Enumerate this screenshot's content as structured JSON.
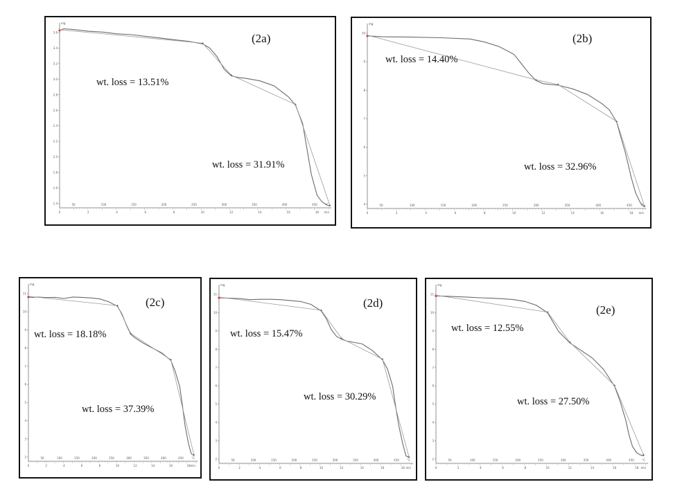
{
  "chart_data": [
    {
      "type": "line",
      "panel_label": "(2a)",
      "annotations": [
        "wt. loss = 13.51%",
        "wt. loss = 31.91%"
      ],
      "ylim": [
        1.4,
        3.6
      ],
      "xlim": [
        0,
        19
      ],
      "yunit": "mg",
      "xunit": "min",
      "x2unit": "°C",
      "yticks": [
        "3.6",
        "3.4",
        "3.2",
        "3.0",
        "2.8",
        "2.6",
        "2.4",
        "2.2",
        "2.0",
        "1.8",
        "1.6",
        "1.4"
      ],
      "xticks": [
        "0",
        "2",
        "4",
        "6",
        "8",
        "10",
        "12",
        "14",
        "16",
        "18"
      ],
      "x2ticks": [
        "50",
        "100",
        "150",
        "200",
        "250",
        "300",
        "350",
        "400",
        "450"
      ],
      "x": [
        0,
        0.3,
        1,
        2,
        3,
        4,
        5,
        6,
        7,
        8,
        9,
        10,
        10.5,
        11,
        11.5,
        12,
        12.5,
        13,
        14,
        15,
        16,
        16.5,
        17,
        17.3,
        17.6,
        18,
        18.3,
        18.6,
        18.9
      ],
      "y": [
        3.51,
        3.53,
        3.52,
        3.5,
        3.49,
        3.47,
        3.46,
        3.44,
        3.42,
        3.4,
        3.38,
        3.35,
        3.3,
        3.2,
        3.05,
        2.97,
        2.95,
        2.94,
        2.91,
        2.85,
        2.72,
        2.62,
        2.4,
        2.1,
        1.8,
        1.55,
        1.48,
        1.44,
        1.42
      ]
    },
    {
      "type": "line",
      "panel_label": "(2b)",
      "annotations": [
        "wt. loss = 14.40%",
        "wt. loss = 32.96%"
      ],
      "ylim": [
        4,
        10
      ],
      "xlim": [
        0,
        19
      ],
      "yunit": "mg",
      "xunit": "min",
      "x2unit": "°C",
      "yticks": [
        "10",
        "9",
        "8",
        "7",
        "6",
        "5",
        "4"
      ],
      "xticks": [
        "0",
        "2",
        "4",
        "6",
        "8",
        "10",
        "12",
        "14",
        "16",
        "18"
      ],
      "x2ticks": [
        "50",
        "100",
        "150",
        "200",
        "250",
        "300",
        "350",
        "400",
        "450"
      ],
      "x": [
        0,
        1,
        3,
        5,
        7,
        8,
        9,
        10,
        10.5,
        11,
        11.5,
        12,
        12.5,
        13,
        14,
        15,
        16,
        16.5,
        17,
        17.3,
        17.6,
        18,
        18.3,
        18.6,
        18.9
      ],
      "y": [
        9.6,
        9.57,
        9.56,
        9.54,
        9.5,
        9.4,
        9.25,
        9.0,
        8.7,
        8.4,
        8.15,
        8.05,
        8.02,
        8.0,
        7.88,
        7.7,
        7.4,
        7.2,
        6.8,
        6.3,
        5.8,
        5.0,
        4.5,
        4.2,
        4.05
      ]
    },
    {
      "type": "line",
      "panel_label": "(2c)",
      "annotations": [
        "wt. loss = 18.18%",
        "wt. loss = 37.39%"
      ],
      "ylim": [
        1.5,
        11
      ],
      "xlim": [
        0,
        19
      ],
      "yunit": "mg",
      "xunit": "min",
      "x2unit": "°C",
      "yticks": [
        "11",
        "10",
        "9",
        "8",
        "7",
        "6",
        "5",
        "4",
        "3",
        "2"
      ],
      "xticks": [
        "0",
        "2",
        "4",
        "6",
        "8",
        "10",
        "12",
        "14",
        "16",
        "18"
      ],
      "x2ticks": [
        "50",
        "100",
        "150",
        "200",
        "250",
        "300",
        "350",
        "400",
        "450"
      ],
      "x": [
        0,
        0.5,
        1,
        2,
        3,
        4,
        5,
        6,
        7,
        8,
        9,
        10,
        10.5,
        11,
        11.5,
        12,
        12.5,
        13,
        14,
        15,
        16,
        16.5,
        17,
        17.3,
        17.6,
        18,
        18.3,
        18.6
      ],
      "y": [
        10.3,
        10.28,
        10.3,
        10.27,
        10.28,
        10.22,
        10.3,
        10.28,
        10.25,
        10.2,
        10.05,
        9.8,
        9.4,
        8.8,
        8.3,
        8.1,
        7.95,
        7.8,
        7.55,
        7.3,
        6.9,
        6.3,
        5.5,
        4.5,
        3.4,
        2.4,
        1.9,
        1.8
      ]
    },
    {
      "type": "line",
      "panel_label": "(2d)",
      "annotations": [
        "wt. loss = 15.47%",
        "wt. loss = 30.29%"
      ],
      "ylim": [
        1.5,
        11
      ],
      "xlim": [
        0,
        19
      ],
      "yunit": "mg",
      "xunit": "min",
      "x2unit": "°C",
      "yticks": [
        "11",
        "10",
        "9",
        "8",
        "7",
        "6",
        "5",
        "4",
        "3",
        "2"
      ],
      "xticks": [
        "0",
        "2",
        "4",
        "6",
        "8",
        "10",
        "12",
        "14",
        "16",
        "18"
      ],
      "x2ticks": [
        "50",
        "100",
        "150",
        "200",
        "250",
        "300",
        "350",
        "400",
        "450"
      ],
      "x": [
        0,
        1,
        2,
        3,
        4,
        5,
        6,
        7,
        8,
        9,
        10,
        10.5,
        11,
        11.5,
        12,
        12.5,
        13,
        14,
        15,
        16,
        16.5,
        17,
        17.3,
        17.6,
        18,
        18.3,
        18.6
      ],
      "y": [
        10.3,
        10.28,
        10.26,
        10.2,
        10.22,
        10.22,
        10.2,
        10.15,
        10.1,
        9.95,
        9.6,
        9.2,
        8.6,
        8.25,
        8.1,
        8.0,
        7.95,
        7.85,
        7.5,
        7.0,
        6.5,
        5.6,
        4.5,
        3.5,
        2.5,
        1.9,
        1.8
      ]
    },
    {
      "type": "line",
      "panel_label": "(2e)",
      "annotations": [
        "wt. loss = 12.55%",
        "wt. loss = 27.50%"
      ],
      "ylim": [
        1.5,
        11
      ],
      "xlim": [
        0,
        19
      ],
      "yunit": "mg",
      "xunit": "min",
      "x2unit": "°C",
      "yticks": [
        "11",
        "10",
        "9",
        "8",
        "7",
        "6",
        "5",
        "4",
        "3",
        "2"
      ],
      "xticks": [
        "0",
        "2",
        "4",
        "6",
        "8",
        "10",
        "12",
        "14",
        "16",
        "18"
      ],
      "x2ticks": [
        "50",
        "100",
        "150",
        "200",
        "250",
        "300",
        "350",
        "400",
        "450"
      ],
      "x": [
        0,
        1,
        2,
        3,
        4,
        5,
        6,
        7,
        8,
        9,
        10,
        10.5,
        11,
        11.5,
        12,
        12.5,
        13,
        14,
        15,
        16,
        16.5,
        17,
        17.3,
        17.6,
        18,
        18.3,
        18.6
      ],
      "y": [
        10.4,
        10.38,
        10.36,
        10.33,
        10.3,
        10.28,
        10.25,
        10.2,
        10.1,
        9.9,
        9.5,
        9.0,
        8.5,
        8.2,
        7.9,
        7.7,
        7.5,
        7.1,
        6.5,
        5.6,
        4.8,
        3.8,
        3.0,
        2.4,
        2.05,
        1.95,
        1.9
      ]
    }
  ]
}
